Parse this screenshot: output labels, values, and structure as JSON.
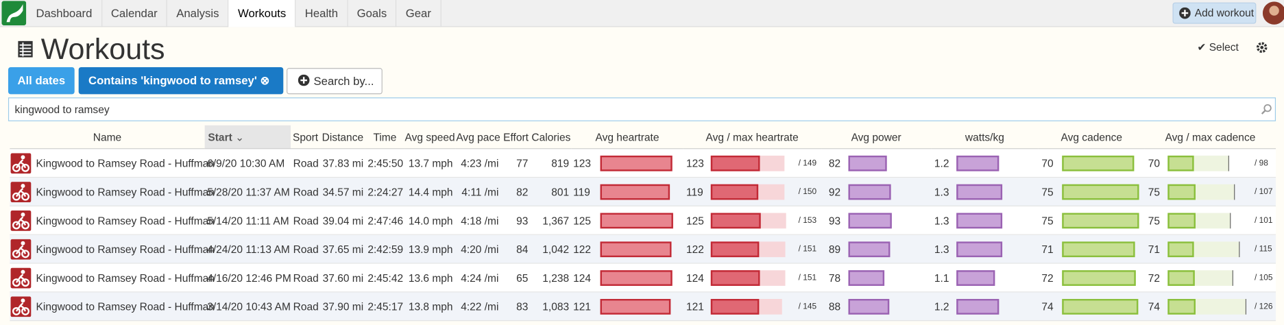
{
  "nav": {
    "tabs": [
      "Dashboard",
      "Calendar",
      "Analysis",
      "Workouts",
      "Health",
      "Goals",
      "Gear"
    ],
    "active_tab": 3,
    "add_workout": "Add workout"
  },
  "title": "Workouts",
  "select": "Select",
  "filters": [
    "All dates",
    "Contains 'kingwood to ramsey'",
    "Search by..."
  ],
  "search": "kingwood to ramsey",
  "table": {
    "columns": [
      "Name",
      "Start",
      "Sport",
      "Distance",
      "Time",
      "Avg speed",
      "Avg pace",
      "Effort",
      "Calories",
      "Avg heartrate",
      "Avg / max heartrate",
      "Avg power",
      "watts/kg",
      "Avg cadence",
      "Avg / max cadence"
    ],
    "sorted_column": 1,
    "rows": [
      {
        "name": "Kingwood to Ramsey Road - Huffman",
        "start": "6/9/20 10:30 AM",
        "sport": "Road",
        "distance": "37.83 mi",
        "time": "2:45:50",
        "speed": "13.7 mph",
        "pace": "4:23 /mi",
        "effort": 77,
        "calories": 819,
        "hr": 123,
        "hr_max": {
          "value": 149,
          "label": "/ 149"
        },
        "power": 82,
        "wkg": 1.2,
        "cadence": 70,
        "cad_max": {
          "value": 98,
          "label": "/ 98"
        }
      },
      {
        "name": "Kingwood to Ramsey Road - Huffman",
        "start": "5/28/20 11:37 AM",
        "sport": "Road",
        "distance": "34.57 mi",
        "time": "2:24:27",
        "speed": "14.4 mph",
        "pace": "4:11 /mi",
        "effort": 82,
        "calories": 801,
        "hr": 119,
        "hr_max": {
          "value": 150,
          "label": "/ 150"
        },
        "power": 92,
        "wkg": 1.3,
        "cadence": 75,
        "cad_max": {
          "value": 107,
          "label": "/ 107"
        }
      },
      {
        "name": "Kingwood to Ramsey Road - Huffman",
        "start": "5/14/20 11:11 AM",
        "sport": "Road",
        "distance": "39.04 mi",
        "time": "2:47:46",
        "speed": "14.0 mph",
        "pace": "4:18 /mi",
        "effort": 93,
        "calories": {
          "value": 1367,
          "label": "1,367"
        },
        "hr": 125,
        "hr_max": {
          "value": 153,
          "label": "/ 153"
        },
        "power": 93,
        "wkg": 1.3,
        "cadence": 75,
        "cad_max": {
          "value": 101,
          "label": "/ 101"
        }
      },
      {
        "name": "Kingwood to Ramsey Road - Huffman",
        "start": "4/24/20 11:13 AM",
        "sport": "Road",
        "distance": "37.65 mi",
        "time": "2:42:59",
        "speed": "13.9 mph",
        "pace": "4:20 /mi",
        "effort": 84,
        "calories": {
          "value": 1042,
          "label": "1,042"
        },
        "hr": 122,
        "hr_max": {
          "value": 151,
          "label": "/ 151"
        },
        "power": 89,
        "wkg": 1.3,
        "cadence": 71,
        "cad_max": {
          "value": 115,
          "label": "/ 115"
        }
      },
      {
        "name": "Kingwood to Ramsey Road - Huffman",
        "start": "4/16/20 12:46 PM",
        "sport": "Road",
        "distance": "37.60 mi",
        "time": "2:45:42",
        "speed": "13.6 mph",
        "pace": "4:24 /mi",
        "effort": 65,
        "calories": {
          "value": 1238,
          "label": "1,238"
        },
        "hr": 124,
        "hr_max": {
          "value": 151,
          "label": "/ 151"
        },
        "power": 78,
        "wkg": 1.1,
        "cadence": 72,
        "cad_max": {
          "value": 105,
          "label": "/ 105"
        }
      },
      {
        "name": "Kingwood to Ramsey Road - Huffman",
        "start": "3/14/20 10:43 AM",
        "sport": "Road",
        "distance": "37.90 mi",
        "time": "2:45:17",
        "speed": "13.8 mph",
        "pace": "4:22 /mi",
        "effort": 83,
        "calories": {
          "value": 1083,
          "label": "1,083"
        },
        "hr": 121,
        "hr_max": {
          "value": 145,
          "label": "/ 145"
        },
        "power": 88,
        "wkg": 1.2,
        "cadence": 74,
        "cad_max": {
          "value": 126,
          "label": "/ 126"
        }
      }
    ]
  }
}
